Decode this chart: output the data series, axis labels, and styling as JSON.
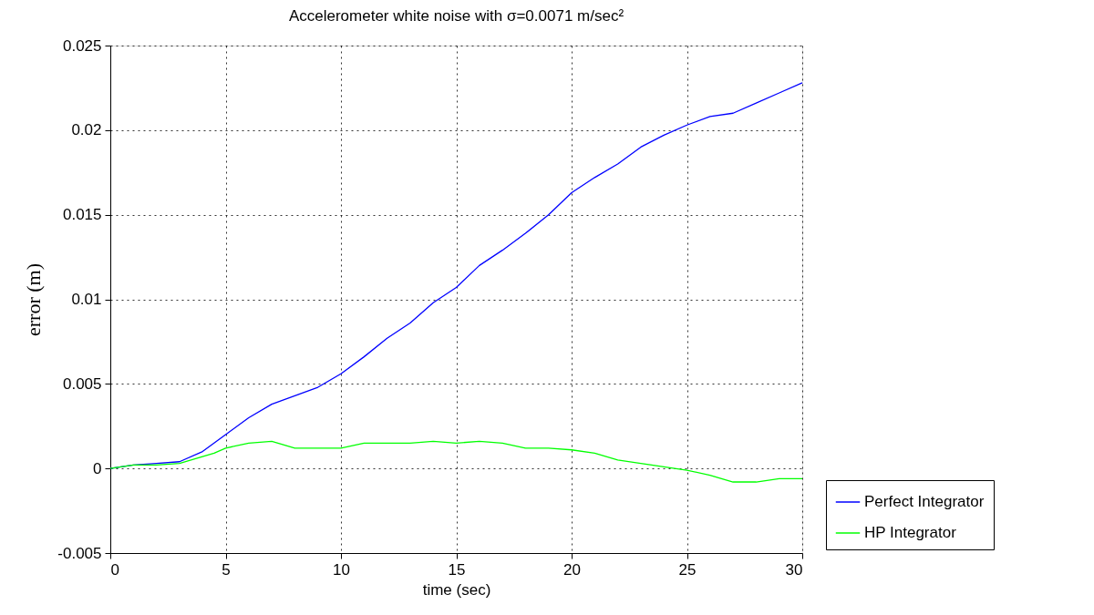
{
  "chart_data": {
    "type": "line",
    "title": "Accelerometer white noise with σ=0.0071 m/sec²",
    "xlabel": "time (sec)",
    "ylabel": "error (m)",
    "x": [
      0,
      1,
      2,
      3,
      4,
      4.5,
      5,
      6,
      7,
      8,
      9,
      10,
      11,
      12,
      13,
      14,
      15,
      16,
      17,
      18,
      19,
      20,
      21,
      22,
      23,
      24,
      25,
      26,
      27,
      28,
      29,
      30
    ],
    "series": [
      {
        "name": "Perfect Integrator",
        "color": "#0000ff",
        "values": [
          0,
          0.0002,
          0.0003,
          0.0004,
          0.001,
          0.0015,
          0.002,
          0.003,
          0.0038,
          0.0043,
          0.0048,
          0.0056,
          0.0066,
          0.0077,
          0.0086,
          0.0098,
          0.0107,
          0.012,
          0.0129,
          0.0139,
          0.015,
          0.0163,
          0.0172,
          0.018,
          0.019,
          0.0197,
          0.0203,
          0.0208,
          0.021,
          0.0216,
          0.0222,
          0.0228
        ]
      },
      {
        "name": "HP Integrator",
        "color": "#00ff00",
        "values": [
          0,
          0.0002,
          0.0002,
          0.0003,
          0.0007,
          0.0009,
          0.0012,
          0.0015,
          0.0016,
          0.0012,
          0.0012,
          0.0012,
          0.0015,
          0.0015,
          0.0015,
          0.0016,
          0.0015,
          0.0016,
          0.0015,
          0.0012,
          0.0012,
          0.0011,
          0.0009,
          0.0005,
          0.0003,
          0.0001,
          -0.0001,
          -0.0004,
          -0.0008,
          -0.0008,
          -0.0006,
          -0.0006
        ]
      }
    ],
    "xlim": [
      0,
      30
    ],
    "xticks": [
      0,
      5,
      10,
      15,
      20,
      25,
      30
    ],
    "ylim": [
      -0.005,
      0.025
    ],
    "yticks": [
      -0.005,
      0,
      0.005,
      0.01,
      0.015,
      0.02,
      0.025
    ],
    "grid": true,
    "legend": "bottom right",
    "line_style": "solid",
    "marker": "none"
  }
}
